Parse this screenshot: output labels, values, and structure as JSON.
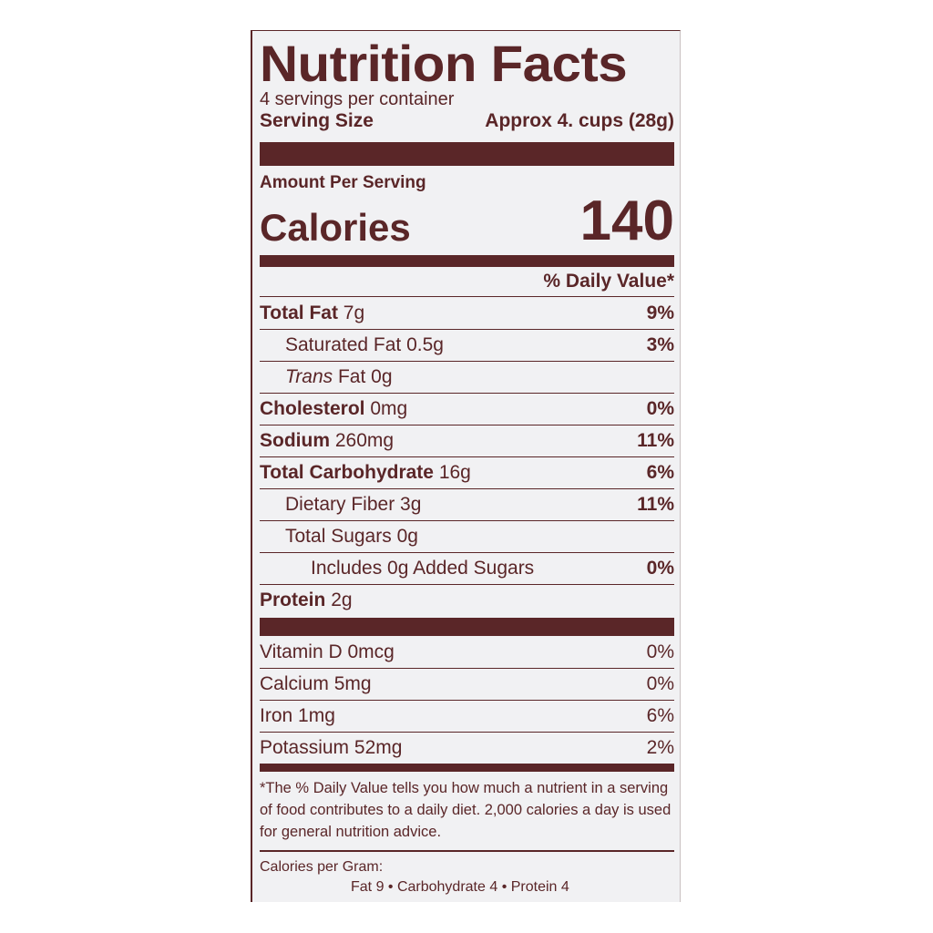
{
  "title": "Nutrition Facts",
  "servings_per_container": "4 servings per container",
  "serving_size": {
    "label": "Serving Size",
    "value": "Approx 4. cups (28g)"
  },
  "amount_per_serving": "Amount Per Serving",
  "calories": {
    "label": "Calories",
    "value": "140"
  },
  "daily_value_header": "% Daily Value*",
  "nutrients": [
    {
      "name": "Total Fat",
      "amount": "7g",
      "dv": "9%",
      "bold": true,
      "indent": 0
    },
    {
      "name": "Saturated Fat",
      "amount": "0.5g",
      "dv": "3%",
      "bold": false,
      "indent": 1
    },
    {
      "name": "Trans",
      "name_suffix": "Fat",
      "amount": "0g",
      "dv": "",
      "bold": false,
      "indent": 1
    },
    {
      "name": "Cholesterol",
      "amount": "0mg",
      "dv": "0%",
      "bold": true,
      "indent": 0
    },
    {
      "name": "Sodium",
      "amount": "260mg",
      "dv": "11%",
      "bold": true,
      "indent": 0
    },
    {
      "name": "Total Carbohydrate",
      "amount": "16g",
      "dv": "6%",
      "bold": true,
      "indent": 0
    },
    {
      "name": "Dietary Fiber",
      "amount": "3g",
      "dv": "11%",
      "bold": false,
      "indent": 1
    },
    {
      "name": "Total Sugars",
      "amount": "0g",
      "dv": "",
      "bold": false,
      "indent": 1
    },
    {
      "name": "Includes 0g Added Sugars",
      "amount": "",
      "dv": "0%",
      "bold": false,
      "indent": 2
    },
    {
      "name": "Protein",
      "amount": "2g",
      "dv": "",
      "bold": true,
      "indent": 0
    }
  ],
  "vitamins": [
    {
      "name": "Vitamin D",
      "amount": "0mcg",
      "dv": "0%"
    },
    {
      "name": "Calcium",
      "amount": "5mg",
      "dv": "0%"
    },
    {
      "name": "Iron",
      "amount": "1mg",
      "dv": "6%"
    },
    {
      "name": "Potassium",
      "amount": "52mg",
      "dv": "2%"
    }
  ],
  "footnote": "*The % Daily Value tells you how much a nutrient in a serving of food contributes to a daily diet. 2,000 calories a day is used for general nutrition advice.",
  "calories_per_gram": {
    "label": "Calories per Gram:",
    "values": "Fat 9 • Carbohydrate 4 • Protein 4"
  },
  "colors": {
    "ink": "#5a2628",
    "label_bg": "#f1f1f3"
  }
}
